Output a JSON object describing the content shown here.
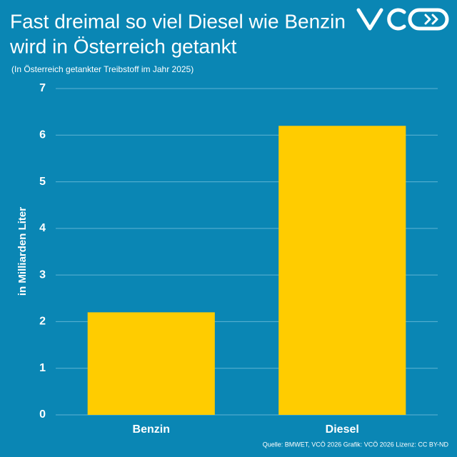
{
  "chart_data": {
    "type": "bar",
    "title": [
      "Fast dreimal so viel Diesel wie Benzin",
      "wird in Österreich getankt"
    ],
    "subtitle": "(In Österreich getankter Treibstoff im Jahr 2025)",
    "y_label": "in Milliarden Liter",
    "categories": [
      "Benzin",
      "Diesel"
    ],
    "values": [
      2.2,
      6.2
    ],
    "color": "#ffcc00",
    "ylim": [
      0,
      7
    ],
    "yticks": [
      0,
      1,
      2,
      3,
      4,
      5,
      6,
      7
    ],
    "grid": true,
    "source": "Quelle: BMWET, VCÖ 2026 Grafik: VCÖ 2026 Lizenz: CC BY-ND"
  }
}
